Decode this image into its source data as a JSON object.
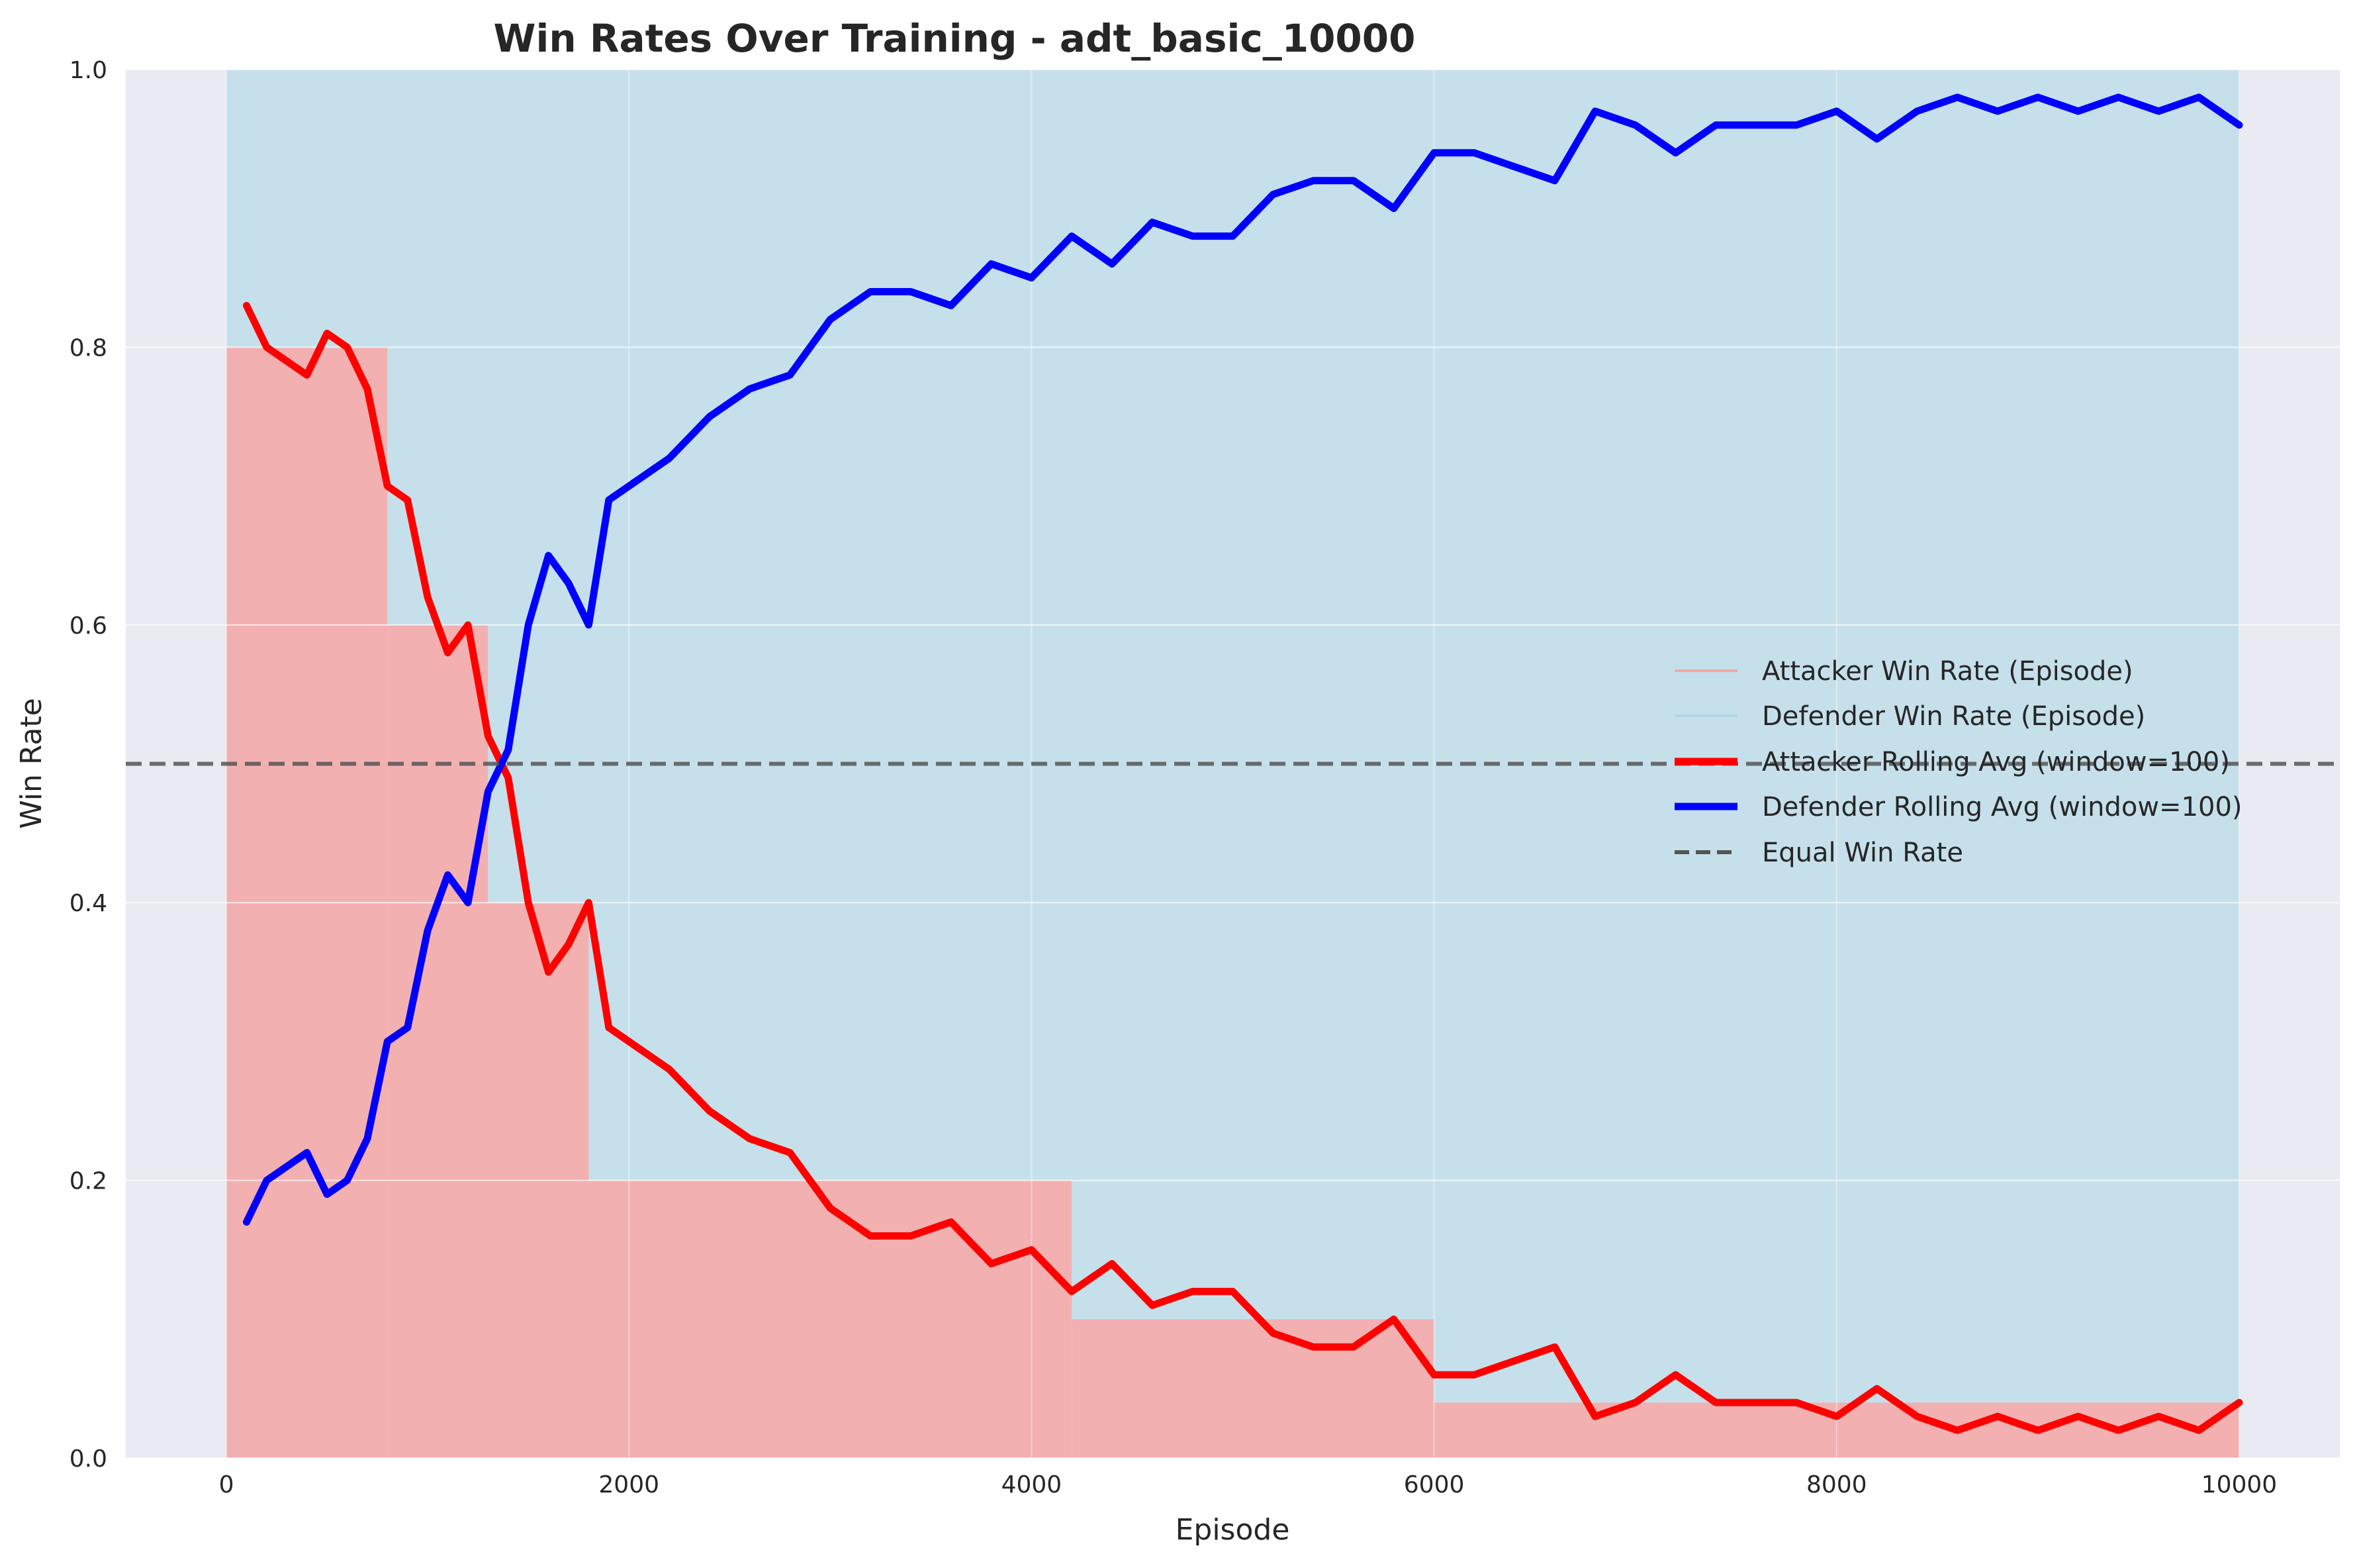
{
  "chart_data": {
    "type": "line",
    "title": "Win Rates Over Training - adt_basic_10000",
    "xlabel": "Episode",
    "ylabel": "Win Rate",
    "xlim": [
      -500,
      10500
    ],
    "ylim": [
      0,
      1
    ],
    "x_ticks": [
      0,
      2000,
      4000,
      6000,
      8000,
      10000
    ],
    "y_ticks": [
      0.0,
      0.2,
      0.4,
      0.6,
      0.8,
      1.0
    ],
    "x_tick_labels": [
      "0",
      "2000",
      "4000",
      "6000",
      "8000",
      "10000"
    ],
    "y_tick_labels": [
      "0.0",
      "0.2",
      "0.4",
      "0.6",
      "0.8",
      "1.0"
    ],
    "grid": true,
    "background_color": "#eaeaf2",
    "legend_position": "center-right",
    "legend": [
      "Attacker Win Rate (Episode)",
      "Defender Win Rate (Episode)",
      "Attacker Rolling Avg (window=100)",
      "Defender Rolling Avg (window=100)",
      "Equal Win Rate"
    ],
    "episode_bands": {
      "note_levels": [
        0.0,
        0.2,
        0.4,
        0.6,
        0.8,
        1.0
      ],
      "segments": [
        {
          "x_start": 0,
          "x_end": 800,
          "attacker_win_rate": 0.8,
          "defender_win_rate": 0.2
        },
        {
          "x_start": 800,
          "x_end": 1300,
          "attacker_win_rate": 0.6,
          "defender_win_rate": 0.4
        },
        {
          "x_start": 1300,
          "x_end": 1800,
          "attacker_win_rate": 0.4,
          "defender_win_rate": 0.6
        },
        {
          "x_start": 1800,
          "x_end": 4200,
          "attacker_win_rate": 0.2,
          "defender_win_rate": 0.8
        },
        {
          "x_start": 4200,
          "x_end": 6000,
          "attacker_win_rate": 0.1,
          "defender_win_rate": 0.9
        },
        {
          "x_start": 6000,
          "x_end": 10000,
          "attacker_win_rate": 0.04,
          "defender_win_rate": 0.96
        }
      ],
      "attacker_color": "#f4a6a6",
      "defender_color": "#add8e6"
    },
    "series": [
      {
        "name": "Attacker Rolling Avg (window=100)",
        "color": "#ff0000",
        "x": [
          100,
          200,
          300,
          400,
          500,
          600,
          700,
          800,
          900,
          1000,
          1100,
          1200,
          1300,
          1400,
          1500,
          1600,
          1700,
          1800,
          1900,
          2000,
          2200,
          2400,
          2600,
          2800,
          3000,
          3200,
          3400,
          3600,
          3800,
          4000,
          4200,
          4400,
          4600,
          4800,
          5000,
          5200,
          5400,
          5600,
          5800,
          6000,
          6200,
          6400,
          6600,
          6800,
          7000,
          7200,
          7400,
          7600,
          7800,
          8000,
          8200,
          8400,
          8600,
          8800,
          9000,
          9200,
          9400,
          9600,
          9800,
          10000
        ],
        "y": [
          0.83,
          0.8,
          0.79,
          0.78,
          0.81,
          0.8,
          0.77,
          0.7,
          0.69,
          0.62,
          0.58,
          0.6,
          0.52,
          0.49,
          0.4,
          0.35,
          0.37,
          0.4,
          0.31,
          0.3,
          0.28,
          0.25,
          0.23,
          0.22,
          0.18,
          0.16,
          0.16,
          0.17,
          0.14,
          0.15,
          0.12,
          0.14,
          0.11,
          0.12,
          0.12,
          0.09,
          0.08,
          0.08,
          0.1,
          0.06,
          0.06,
          0.07,
          0.08,
          0.03,
          0.04,
          0.06,
          0.04,
          0.04,
          0.04,
          0.03,
          0.05,
          0.03,
          0.02,
          0.03,
          0.02,
          0.03,
          0.02,
          0.03,
          0.02,
          0.04
        ]
      },
      {
        "name": "Defender Rolling Avg (window=100)",
        "color": "#0000ff",
        "x": [
          100,
          200,
          300,
          400,
          500,
          600,
          700,
          800,
          900,
          1000,
          1100,
          1200,
          1300,
          1400,
          1500,
          1600,
          1700,
          1800,
          1900,
          2000,
          2200,
          2400,
          2600,
          2800,
          3000,
          3200,
          3400,
          3600,
          3800,
          4000,
          4200,
          4400,
          4600,
          4800,
          5000,
          5200,
          5400,
          5600,
          5800,
          6000,
          6200,
          6400,
          6600,
          6800,
          7000,
          7200,
          7400,
          7600,
          7800,
          8000,
          8200,
          8400,
          8600,
          8800,
          9000,
          9200,
          9400,
          9600,
          9800,
          10000
        ],
        "y": [
          0.17,
          0.2,
          0.21,
          0.22,
          0.19,
          0.2,
          0.23,
          0.3,
          0.31,
          0.38,
          0.42,
          0.4,
          0.48,
          0.51,
          0.6,
          0.65,
          0.63,
          0.6,
          0.69,
          0.7,
          0.72,
          0.75,
          0.77,
          0.78,
          0.82,
          0.84,
          0.84,
          0.83,
          0.86,
          0.85,
          0.88,
          0.86,
          0.89,
          0.88,
          0.88,
          0.91,
          0.92,
          0.92,
          0.9,
          0.94,
          0.94,
          0.93,
          0.92,
          0.97,
          0.96,
          0.94,
          0.96,
          0.96,
          0.96,
          0.97,
          0.95,
          0.97,
          0.98,
          0.97,
          0.98,
          0.97,
          0.98,
          0.97,
          0.98,
          0.96
        ]
      },
      {
        "name": "Equal Win Rate",
        "color": "#555555",
        "style": "dashed",
        "y": 0.5
      }
    ]
  }
}
